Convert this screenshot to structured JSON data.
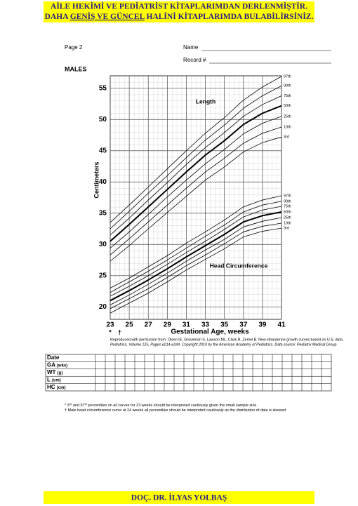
{
  "header": {
    "line1": "AİLE HEKİMİ VE PEDİATRİST KİTAPLARIMDAN DERLENMİŞTİR.",
    "line2": [
      "DAHA ",
      "GENİŞ VE GÜNCEL",
      " HALİNİ KİTAPLARIMDA BULABİLİRSİNİZ."
    ]
  },
  "page": "Page 2",
  "name_label": "Name",
  "record_label": "Record #",
  "sex": "MALES",
  "chart_data": {
    "type": "line",
    "x": [
      23,
      25,
      27,
      29,
      31,
      33,
      35,
      37,
      39,
      41
    ],
    "xlim": [
      23,
      41
    ],
    "xticks": [
      23,
      25,
      27,
      29,
      31,
      33,
      35,
      37,
      39,
      41
    ],
    "ylim": [
      18,
      57
    ],
    "yticks": [
      20,
      25,
      30,
      35,
      40,
      45,
      50,
      55
    ],
    "x_label": "Gestational Age, weeks",
    "y_label": "Centimeters",
    "grid": true,
    "annotations": [
      "Length",
      "Head Circumference"
    ],
    "x_markers": [
      {
        "x": 23,
        "label": "*"
      },
      {
        "x": 24,
        "label": "†"
      }
    ],
    "series": [
      {
        "name": "97th",
        "color": "#000000",
        "width": 0.8,
        "values": [
          33.5,
          36.3,
          39.2,
          42.1,
          45.0,
          47.8,
          50.3,
          53.1,
          55.2,
          56.9
        ]
      },
      {
        "name": "90th",
        "color": "#000000",
        "width": 0.8,
        "values": [
          32.5,
          35.3,
          38.2,
          41.0,
          43.9,
          46.7,
          49.1,
          51.8,
          53.8,
          55.4
        ]
      },
      {
        "name": "75th",
        "color": "#000000",
        "width": 0.8,
        "values": [
          31.5,
          34.2,
          37.1,
          39.9,
          42.8,
          45.5,
          47.9,
          50.5,
          52.4,
          53.8
        ]
      },
      {
        "name": "50th",
        "color": "#000000",
        "width": 2,
        "values": [
          30.5,
          33.2,
          36.0,
          38.8,
          41.6,
          44.3,
          46.6,
          49.2,
          51.0,
          52.2
        ]
      },
      {
        "name": "25th",
        "color": "#000000",
        "width": 0.8,
        "values": [
          29.4,
          32.0,
          34.8,
          37.6,
          40.3,
          42.9,
          45.2,
          47.7,
          49.4,
          50.5
        ]
      },
      {
        "name": "10th",
        "color": "#000000",
        "width": 0.8,
        "values": [
          28.3,
          30.9,
          33.6,
          36.3,
          39.0,
          41.6,
          43.8,
          46.2,
          47.8,
          48.8
        ]
      },
      {
        "name": "3rd",
        "color": "#000000",
        "width": 0.8,
        "values": [
          27.3,
          29.8,
          32.5,
          35.1,
          37.7,
          40.3,
          42.4,
          44.8,
          46.3,
          47.2
        ]
      },
      {
        "name": "97th",
        "color": "#000000",
        "width": 0.8,
        "values": [
          23.0,
          24.6,
          26.4,
          28.2,
          30.2,
          32.0,
          33.9,
          36.0,
          37.1,
          37.8
        ]
      },
      {
        "name": "90th",
        "color": "#000000",
        "width": 0.8,
        "values": [
          22.3,
          24.0,
          25.7,
          27.5,
          29.4,
          31.3,
          33.1,
          35.2,
          36.3,
          36.9
        ]
      },
      {
        "name": "75th",
        "color": "#000000",
        "width": 0.8,
        "values": [
          21.7,
          23.3,
          25.0,
          26.8,
          28.7,
          30.5,
          32.4,
          34.4,
          35.5,
          36.1
        ]
      },
      {
        "name": "50th",
        "color": "#000000",
        "width": 2,
        "values": [
          21.0,
          22.6,
          24.3,
          26.1,
          28.0,
          29.8,
          31.6,
          33.6,
          34.6,
          35.2
        ]
      },
      {
        "name": "25th",
        "color": "#000000",
        "width": 0.8,
        "values": [
          20.3,
          21.9,
          23.6,
          25.4,
          27.3,
          29.1,
          30.8,
          32.8,
          33.7,
          34.3
        ]
      },
      {
        "name": "10th",
        "color": "#000000",
        "width": 0.8,
        "values": [
          19.7,
          21.3,
          22.9,
          24.7,
          26.6,
          28.3,
          30.1,
          32.0,
          32.9,
          33.4
        ]
      },
      {
        "name": "3rd",
        "color": "#000000",
        "width": 0.8,
        "values": [
          19.0,
          20.6,
          22.2,
          24.0,
          25.9,
          27.6,
          29.3,
          31.2,
          32.1,
          32.6
        ]
      }
    ]
  },
  "credit": [
    "Reproduced with permission from: Olsen IE, Groveman S, Lawson ML, Clark R, Zemel B. New intrauterine growth curves based on U.S. data.",
    "Pediatrics, Volume 125, Pages e214-e244. Copyright 2010 by the American Academy of Pediatrics.  Data source: Pediatrix Medical Group"
  ],
  "table": {
    "rows": [
      {
        "label": "Date"
      },
      {
        "label": "GA",
        "unit": "(wks)"
      },
      {
        "label": "WT",
        "unit": "(g)"
      },
      {
        "label": "L",
        "unit": "(cm)"
      },
      {
        "label": "HC",
        "unit": "(cm)"
      }
    ]
  },
  "footnotes": [
    [
      "* 3",
      "rd",
      " and 97",
      "th",
      " percentiles on all curves for 23 weeks should be interpreted cautiously given the small sample size."
    ],
    [
      "† Male head circumference curve at 24 weeks all percentiles should be interpreted cautiously as the distribution of data is skewed"
    ]
  ],
  "footer": "DOÇ. DR. İLYAS YOLBAŞ"
}
